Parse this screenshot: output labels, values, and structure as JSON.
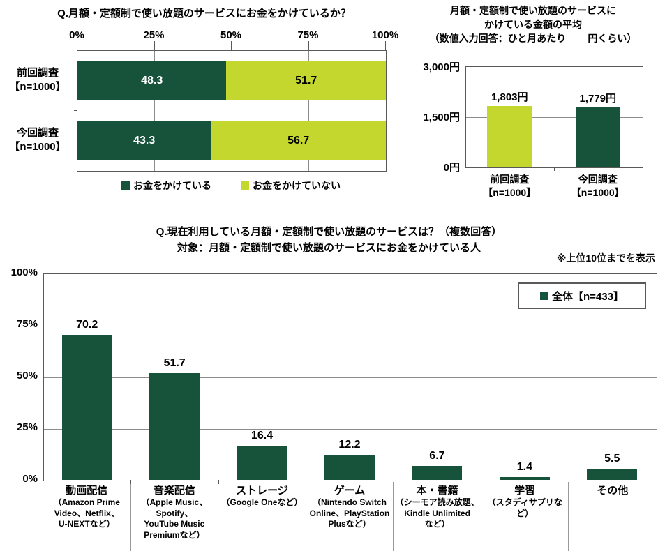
{
  "colors": {
    "dark_green": "#17523A",
    "yellow_green": "#C3D72E",
    "axis": "#595959",
    "grid": "#8C8C8C"
  },
  "chart_data": [
    {
      "type": "bar",
      "orientation": "horizontal_stacked",
      "title": "Q.月額・定額制で使い放題のサービスにお金をかけているか？",
      "x_ticks": [
        "0%",
        "25%",
        "50%",
        "75%",
        "100%"
      ],
      "xlim": [
        0,
        100
      ],
      "grid": true,
      "legend_position": "bottom",
      "categories": [
        [
          "前回調査",
          "【n=1000】"
        ],
        [
          "今回調査",
          "【n=1000】"
        ]
      ],
      "series": [
        {
          "name": "お金をかけている",
          "color": "#17523A",
          "text_color": "#FFFFFF",
          "values": [
            48.3,
            43.3
          ]
        },
        {
          "name": "お金をかけていない",
          "color": "#C3D72E",
          "text_color": "#000000",
          "values": [
            51.7,
            56.7
          ]
        }
      ]
    },
    {
      "type": "bar",
      "orientation": "vertical",
      "title_lines": [
        "月額・定額制で使い放題のサービスに",
        "かけている金額の平均",
        "（数値入力回答：ひと月あたり____円くらい）"
      ],
      "y_ticks": [
        "3,000円",
        "1,500円",
        "0円"
      ],
      "ylim": [
        0,
        3000
      ],
      "grid": true,
      "categories": [
        [
          "前回調査",
          "【n=1000】"
        ],
        [
          "今回調査",
          "【n=1000】"
        ]
      ],
      "values": [
        1803,
        1779
      ],
      "value_labels": [
        "1,803円",
        "1,779円"
      ],
      "bar_colors": [
        "#C3D72E",
        "#17523A"
      ]
    },
    {
      "type": "bar",
      "orientation": "vertical",
      "title_lines": [
        "Q.現在利用している月額・定額制で使い放題のサービスは？（複数回答）",
        "対象：月額・定額制で使い放題のサービスにお金をかけている人"
      ],
      "note": "※上位10位までを表示",
      "legend": {
        "label": "全体【n=433】",
        "color": "#17523A"
      },
      "y_ticks": [
        "100%",
        "75%",
        "50%",
        "25%",
        "0%"
      ],
      "ylim": [
        0,
        100
      ],
      "grid": true,
      "bar_color": "#17523A",
      "categories": [
        [
          "動画配信",
          "（Amazon Prime",
          "Video、Netflix、",
          "U-NEXTなど）"
        ],
        [
          "音楽配信",
          "（Apple Music、",
          "Spotify、",
          "YouTube Music",
          "Premiumなど）"
        ],
        [
          "ストレージ",
          "（Google Oneなど）"
        ],
        [
          "ゲーム",
          "（Nintendo Switch",
          "Online、PlayStation",
          "Plusなど）"
        ],
        [
          "本・書籍",
          "（シーモア読み放題、",
          "Kindle Unlimited",
          "など）"
        ],
        [
          "学習",
          "（スタディサプリなど）"
        ],
        [
          "その他"
        ]
      ],
      "values": [
        70.2,
        51.7,
        16.4,
        12.2,
        6.7,
        1.4,
        5.5
      ]
    }
  ]
}
